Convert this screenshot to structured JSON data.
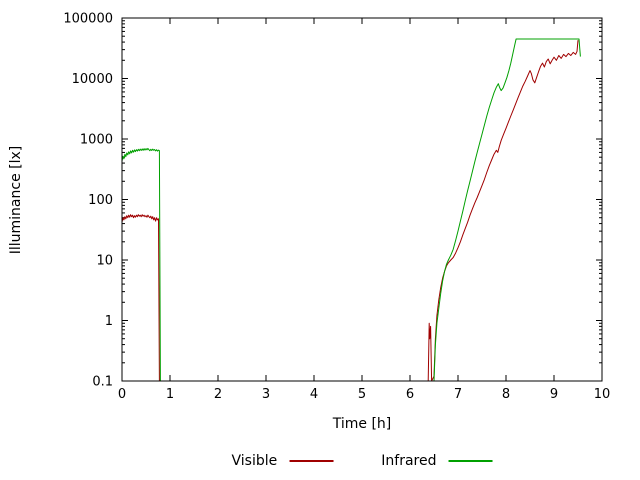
{
  "chart_data": {
    "type": "line",
    "title": "",
    "xlabel": "Time [h]",
    "ylabel": "Illuminance [lx]",
    "xlim": [
      0,
      10
    ],
    "ylim": [
      0.1,
      100000
    ],
    "y_scale": "log10",
    "x_ticks": [
      "0",
      "1",
      "2",
      "3",
      "4",
      "5",
      "6",
      "7",
      "8",
      "9",
      "10"
    ],
    "y_ticks": [
      "0.1",
      "1",
      "10",
      "100",
      "1000",
      "10000",
      "100000"
    ],
    "grid": false,
    "border_color": "#000000",
    "legend_position": "bottom-center",
    "series": [
      {
        "name": "Visible",
        "color": "#a00000",
        "segments": [
          [
            [
              0.0,
              42
            ],
            [
              0.02,
              50
            ],
            [
              0.04,
              46
            ],
            [
              0.06,
              52
            ],
            [
              0.08,
              48
            ],
            [
              0.1,
              54
            ],
            [
              0.12,
              50
            ],
            [
              0.14,
              55
            ],
            [
              0.16,
              51
            ],
            [
              0.18,
              56
            ],
            [
              0.2,
              52
            ],
            [
              0.22,
              55
            ],
            [
              0.24,
              50
            ],
            [
              0.26,
              54
            ],
            [
              0.28,
              51
            ],
            [
              0.3,
              55
            ],
            [
              0.32,
              52
            ],
            [
              0.34,
              56
            ],
            [
              0.36,
              53
            ],
            [
              0.38,
              55
            ],
            [
              0.4,
              52
            ],
            [
              0.42,
              56
            ],
            [
              0.44,
              53
            ],
            [
              0.46,
              55
            ],
            [
              0.48,
              52
            ],
            [
              0.5,
              54
            ],
            [
              0.52,
              51
            ],
            [
              0.54,
              55
            ],
            [
              0.56,
              52
            ],
            [
              0.58,
              50
            ],
            [
              0.6,
              53
            ],
            [
              0.62,
              48
            ],
            [
              0.64,
              52
            ],
            [
              0.66,
              46
            ],
            [
              0.68,
              50
            ],
            [
              0.7,
              44
            ],
            [
              0.72,
              50
            ],
            [
              0.74,
              46
            ],
            [
              0.76,
              48
            ],
            [
              0.78,
              0.1
            ]
          ],
          [
            [
              6.38,
              0.1
            ],
            [
              6.4,
              0.9
            ],
            [
              6.41,
              0.5
            ],
            [
              6.43,
              0.8
            ],
            [
              6.45,
              0.1
            ],
            [
              6.5,
              0.12
            ],
            [
              6.53,
              0.5
            ],
            [
              6.56,
              1.2
            ],
            [
              6.6,
              2.2
            ],
            [
              6.64,
              3.5
            ],
            [
              6.68,
              5
            ],
            [
              6.72,
              6.5
            ],
            [
              6.76,
              8
            ],
            [
              6.8,
              9
            ],
            [
              6.85,
              10
            ],
            [
              6.9,
              11
            ],
            [
              6.95,
              13
            ],
            [
              7.0,
              16
            ],
            [
              7.05,
              20
            ],
            [
              7.1,
              26
            ],
            [
              7.15,
              33
            ],
            [
              7.2,
              42
            ],
            [
              7.25,
              55
            ],
            [
              7.3,
              70
            ],
            [
              7.35,
              88
            ],
            [
              7.4,
              108
            ],
            [
              7.45,
              135
            ],
            [
              7.5,
              170
            ],
            [
              7.55,
              215
            ],
            [
              7.6,
              280
            ],
            [
              7.65,
              360
            ],
            [
              7.7,
              450
            ],
            [
              7.75,
              560
            ],
            [
              7.8,
              650
            ],
            [
              7.83,
              600
            ],
            [
              7.86,
              750
            ],
            [
              7.9,
              950
            ],
            [
              7.95,
              1200
            ],
            [
              8.0,
              1500
            ],
            [
              8.05,
              1900
            ],
            [
              8.1,
              2400
            ],
            [
              8.15,
              3000
            ],
            [
              8.2,
              3800
            ],
            [
              8.25,
              4800
            ],
            [
              8.3,
              6000
            ],
            [
              8.35,
              7500
            ],
            [
              8.4,
              9000
            ],
            [
              8.45,
              11000
            ],
            [
              8.5,
              13500
            ],
            [
              8.53,
              12000
            ],
            [
              8.56,
              9500
            ],
            [
              8.6,
              8500
            ],
            [
              8.64,
              10500
            ],
            [
              8.68,
              13000
            ],
            [
              8.72,
              16000
            ],
            [
              8.76,
              18000
            ],
            [
              8.8,
              15500
            ],
            [
              8.84,
              19000
            ],
            [
              8.88,
              21000
            ],
            [
              8.92,
              17500
            ],
            [
              8.96,
              20000
            ],
            [
              9.0,
              22500
            ],
            [
              9.05,
              20000
            ],
            [
              9.1,
              24000
            ],
            [
              9.15,
              21500
            ],
            [
              9.2,
              25000
            ],
            [
              9.25,
              23000
            ],
            [
              9.3,
              26000
            ],
            [
              9.35,
              24000
            ],
            [
              9.4,
              27000
            ],
            [
              9.45,
              25000
            ],
            [
              9.48,
              28000
            ],
            [
              9.5,
              43000
            ]
          ]
        ]
      },
      {
        "name": "Infrared",
        "color": "#00a000",
        "segments": [
          [
            [
              0.0,
              430
            ],
            [
              0.02,
              520
            ],
            [
              0.04,
              470
            ],
            [
              0.06,
              560
            ],
            [
              0.08,
              510
            ],
            [
              0.1,
              590
            ],
            [
              0.12,
              545
            ],
            [
              0.14,
              615
            ],
            [
              0.16,
              570
            ],
            [
              0.18,
              635
            ],
            [
              0.2,
              590
            ],
            [
              0.22,
              650
            ],
            [
              0.24,
              605
            ],
            [
              0.26,
              660
            ],
            [
              0.28,
              620
            ],
            [
              0.3,
              665
            ],
            [
              0.32,
              630
            ],
            [
              0.34,
              675
            ],
            [
              0.36,
              640
            ],
            [
              0.38,
              680
            ],
            [
              0.4,
              645
            ],
            [
              0.42,
              685
            ],
            [
              0.44,
              650
            ],
            [
              0.46,
              690
            ],
            [
              0.48,
              655
            ],
            [
              0.5,
              695
            ],
            [
              0.52,
              660
            ],
            [
              0.54,
              700
            ],
            [
              0.56,
              665
            ],
            [
              0.58,
              640
            ],
            [
              0.6,
              675
            ],
            [
              0.62,
              645
            ],
            [
              0.64,
              680
            ],
            [
              0.66,
              650
            ],
            [
              0.68,
              670
            ],
            [
              0.7,
              635
            ],
            [
              0.72,
              665
            ],
            [
              0.74,
              630
            ],
            [
              0.76,
              655
            ],
            [
              0.78,
              640
            ],
            [
              0.8,
              0.1
            ]
          ],
          [
            [
              6.5,
              0.1
            ],
            [
              6.53,
              0.4
            ],
            [
              6.56,
              0.9
            ],
            [
              6.6,
              1.6
            ],
            [
              6.64,
              2.8
            ],
            [
              6.68,
              4.5
            ],
            [
              6.72,
              6.5
            ],
            [
              6.76,
              8.5
            ],
            [
              6.8,
              10
            ],
            [
              6.85,
              12
            ],
            [
              6.9,
              15
            ],
            [
              6.95,
              21
            ],
            [
              7.0,
              30
            ],
            [
              7.05,
              44
            ],
            [
              7.1,
              64
            ],
            [
              7.15,
              95
            ],
            [
              7.2,
              140
            ],
            [
              7.25,
              200
            ],
            [
              7.3,
              290
            ],
            [
              7.35,
              420
            ],
            [
              7.4,
              600
            ],
            [
              7.45,
              850
            ],
            [
              7.5,
              1200
            ],
            [
              7.55,
              1700
            ],
            [
              7.6,
              2400
            ],
            [
              7.65,
              3300
            ],
            [
              7.7,
              4400
            ],
            [
              7.75,
              5800
            ],
            [
              7.8,
              7200
            ],
            [
              7.84,
              8200
            ],
            [
              7.87,
              7000
            ],
            [
              7.9,
              6300
            ],
            [
              7.94,
              7000
            ],
            [
              7.98,
              8500
            ],
            [
              8.02,
              10500
            ],
            [
              8.06,
              13500
            ],
            [
              8.1,
              18000
            ],
            [
              8.14,
              25000
            ],
            [
              8.18,
              35000
            ],
            [
              8.21,
              45000
            ],
            [
              8.3,
              45000
            ],
            [
              8.6,
              45000
            ],
            [
              9.0,
              45000
            ],
            [
              9.3,
              45000
            ],
            [
              9.52,
              45000
            ],
            [
              9.55,
              23000
            ]
          ]
        ]
      }
    ]
  }
}
